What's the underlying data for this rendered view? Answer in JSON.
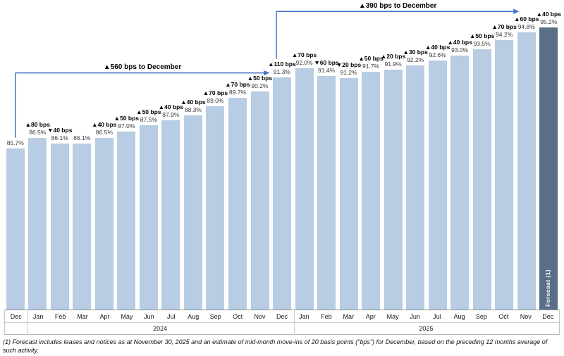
{
  "chart_data": {
    "type": "bar",
    "title": "Occupancy by month with bps change",
    "unit": "%",
    "categories": [
      "Dec",
      "Jan",
      "Feb",
      "Mar",
      "Apr",
      "May",
      "Jun",
      "Jul",
      "Aug",
      "Sep",
      "Oct",
      "Nov",
      "Dec",
      "Jan",
      "Feb",
      "Mar",
      "Apr",
      "May",
      "Jun",
      "Jul",
      "Aug",
      "Sep",
      "Oct",
      "Nov",
      "Dec"
    ],
    "year_groups": [
      {
        "label": "",
        "span": 1
      },
      {
        "label": "2024",
        "span": 12
      },
      {
        "label": "2025",
        "span": 12
      }
    ],
    "values": [
      85.7,
      86.5,
      86.1,
      86.1,
      86.5,
      87.0,
      87.5,
      87.9,
      88.3,
      89.0,
      89.7,
      90.2,
      91.3,
      92.0,
      91.4,
      91.2,
      91.7,
      91.9,
      92.2,
      92.6,
      93.0,
      93.5,
      94.2,
      94.8,
      95.2
    ],
    "value_labels": [
      "85.7%",
      "86.5%",
      "86.1%",
      "86.1%",
      "86.5%",
      "87.0%",
      "87.5%",
      "87.9%",
      "88.3%",
      "89.0%",
      "89.7%",
      "90.2%",
      "91.3%",
      "92.0%",
      "91.4%",
      "91.2%",
      "91.7%",
      "91.9%",
      "92.2%",
      "92.6%",
      "93.0%",
      "93.5%",
      "94.2%",
      "94.8%",
      "95.2%"
    ],
    "bps_labels": [
      "",
      "▲80 bps",
      "▼40 bps",
      "",
      "▲40 bps",
      "▲50 bps",
      "▲50 bps",
      "▲40 bps",
      "▲40 bps",
      "▲70 bps",
      "▲70 bps",
      "▲50 bps",
      "▲110 bps",
      "▲70 bps",
      "▼60 bps",
      "▼20 bps",
      "▲50 bps",
      "▲20 bps",
      "▲30 bps",
      "▲40 bps",
      "▲40 bps",
      "▲50 bps",
      "▲70 bps",
      "▲60 bps",
      "▲40 bps"
    ],
    "forecast_index": 24,
    "forecast_bar_label": "Forecast (1)",
    "annotations": [
      {
        "label": "▲560 bps to December",
        "from_index": 0,
        "to_index": 12
      },
      {
        "label": "▲390 bps to December",
        "from_index": 12,
        "to_index": 24
      }
    ],
    "ylim": [
      73,
      95.6
    ],
    "legend": "off",
    "grid": "off",
    "colors": {
      "bar": "#b8cce4",
      "forecast_bar": "#5a6e87",
      "arrow": "#4472c4",
      "axis_line": "#8f959c",
      "label_text": "#3a3a3a"
    }
  },
  "footnote": "(1) Forecast includes leases and notices as at November 30, 2025 and an estimate of mid-month move-ins of 20 basis points (\"bps\") for December, based on the preceding 12 months average of such activity."
}
